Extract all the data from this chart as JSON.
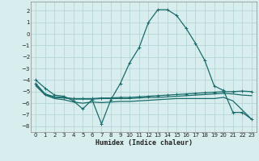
{
  "xlabel": "Humidex (Indice chaleur)",
  "background_color": "#d8eeee",
  "grid_color": "#b0d0d0",
  "line_color": "#1a6b6b",
  "xlim": [
    -0.5,
    23.5
  ],
  "ylim": [
    -8.5,
    2.8
  ],
  "yticks": [
    2,
    1,
    0,
    -1,
    -2,
    -3,
    -4,
    -5,
    -6,
    -7,
    -8
  ],
  "xticks": [
    0,
    1,
    2,
    3,
    4,
    5,
    6,
    7,
    8,
    9,
    10,
    11,
    12,
    13,
    14,
    15,
    16,
    17,
    18,
    19,
    20,
    21,
    22,
    23
  ],
  "series": [
    {
      "y": [
        -4.0,
        -4.7,
        -5.3,
        -5.4,
        -5.8,
        -6.5,
        -5.7,
        -7.8,
        -5.7,
        -4.3,
        -2.5,
        -1.2,
        1.0,
        2.1,
        2.1,
        1.6,
        0.5,
        -0.8,
        -2.3,
        -4.5,
        -4.9,
        -6.8,
        -6.8,
        -7.4
      ],
      "marker": "+",
      "lw": 0.9
    },
    {
      "y": [
        -4.3,
        -5.2,
        -5.45,
        -5.5,
        -5.6,
        -5.6,
        -5.6,
        -5.55,
        -5.55,
        -5.5,
        -5.5,
        -5.45,
        -5.4,
        -5.35,
        -5.3,
        -5.25,
        -5.2,
        -5.15,
        -5.1,
        -5.05,
        -5.0,
        -5.0,
        -4.95,
        -5.0
      ],
      "marker": "+",
      "lw": 0.9
    },
    {
      "y": [
        -4.4,
        -5.25,
        -5.5,
        -5.55,
        -5.65,
        -5.65,
        -5.65,
        -5.6,
        -5.6,
        -5.6,
        -5.6,
        -5.55,
        -5.5,
        -5.5,
        -5.45,
        -5.4,
        -5.35,
        -5.3,
        -5.25,
        -5.2,
        -5.15,
        -5.2,
        -5.3,
        -5.35
      ],
      "marker": null,
      "lw": 0.9
    },
    {
      "y": [
        -4.5,
        -5.3,
        -5.6,
        -5.7,
        -5.9,
        -6.0,
        -5.9,
        -5.95,
        -5.9,
        -5.85,
        -5.85,
        -5.8,
        -5.75,
        -5.7,
        -5.65,
        -5.6,
        -5.6,
        -5.6,
        -5.6,
        -5.6,
        -5.5,
        -5.8,
        -6.6,
        -7.4
      ],
      "marker": null,
      "lw": 0.9
    }
  ]
}
